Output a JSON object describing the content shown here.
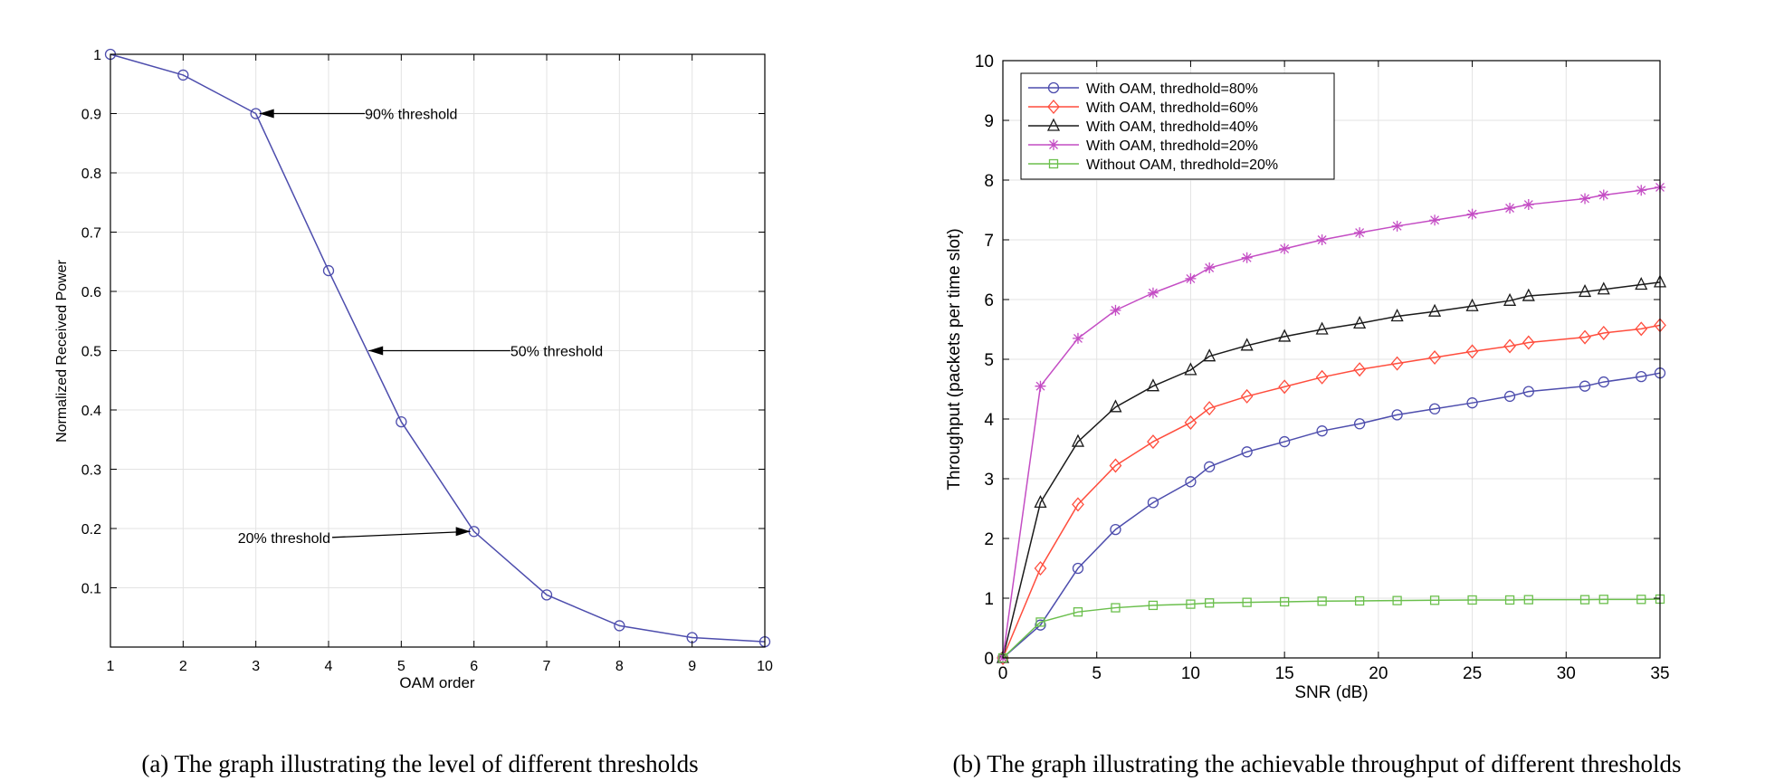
{
  "chart_data": [
    {
      "type": "line",
      "title": "",
      "xlabel": "OAM order",
      "ylabel": "Normalized Received Power",
      "xlim": [
        1,
        10
      ],
      "ylim": [
        0,
        1
      ],
      "grid": true,
      "xticks": [
        1,
        2,
        3,
        4,
        5,
        6,
        7,
        8,
        9,
        10
      ],
      "yticks": [
        0.1,
        0.2,
        0.3,
        0.4,
        0.5,
        0.6,
        0.7,
        0.8,
        0.9,
        1
      ],
      "x_tick_labels": [
        "1",
        "2",
        "3",
        "4",
        "5",
        "6",
        "7",
        "8",
        "9",
        "10"
      ],
      "y_tick_labels": [
        "0.1",
        "0.2",
        "0.3",
        "0.4",
        "0.5",
        "0.6",
        "0.7",
        "0.8",
        "0.9",
        "1"
      ],
      "series": [
        {
          "name": "Normalized received power",
          "color": "#4d4dad",
          "marker": "circle",
          "x": [
            1,
            2,
            3,
            4,
            5,
            6,
            7,
            8,
            9,
            10
          ],
          "values": [
            1.0,
            0.965,
            0.9,
            0.635,
            0.38,
            0.195,
            0.088,
            0.036,
            0.016,
            0.009
          ]
        }
      ],
      "annotations": [
        {
          "text": "90% threshold",
          "point": [
            3.05,
            0.9
          ],
          "text_at": [
            4.5,
            0.9
          ],
          "align": "left"
        },
        {
          "text": "50% threshold",
          "point": [
            4.55,
            0.5
          ],
          "text_at": [
            6.5,
            0.5
          ],
          "align": "left"
        },
        {
          "text": "20% threshold",
          "point": [
            5.95,
            0.195
          ],
          "text_at": [
            4.05,
            0.185
          ],
          "align": "right"
        }
      ],
      "caption": "(a) The graph illustrating the level of different thresholds"
    },
    {
      "type": "line",
      "title": "",
      "xlabel": "SNR (dB)",
      "ylabel": "Throughput (packets per time slot)",
      "xlim": [
        0,
        35
      ],
      "ylim": [
        0,
        10
      ],
      "grid": true,
      "legend_position": "top-left",
      "xticks": [
        0,
        5,
        10,
        15,
        20,
        25,
        30,
        35
      ],
      "yticks": [
        0,
        1,
        2,
        3,
        4,
        5,
        6,
        7,
        8,
        9,
        10
      ],
      "x_tick_labels": [
        "0",
        "5",
        "10",
        "15",
        "20",
        "25",
        "30",
        "35"
      ],
      "y_tick_labels": [
        "0",
        "1",
        "2",
        "3",
        "4",
        "5",
        "6",
        "7",
        "8",
        "9",
        "10"
      ],
      "x": [
        0,
        2,
        4,
        6,
        8,
        10,
        11,
        13,
        15,
        17,
        19,
        21,
        23,
        25,
        27,
        28,
        31,
        32,
        34,
        35
      ],
      "series": [
        {
          "name": "With OAM, thredhold=80%",
          "color": "#4d4dad",
          "marker": "circle",
          "values": [
            0,
            0.55,
            1.5,
            2.15,
            2.6,
            2.95,
            3.2,
            3.45,
            3.62,
            3.8,
            3.92,
            4.07,
            4.17,
            4.27,
            4.38,
            4.46,
            4.55,
            4.62,
            4.71,
            4.77
          ]
        },
        {
          "name": "With OAM, thredhold=60%",
          "color": "#ff4d3d",
          "marker": "diamond",
          "values": [
            0,
            1.5,
            2.57,
            3.22,
            3.62,
            3.94,
            4.18,
            4.38,
            4.54,
            4.7,
            4.83,
            4.93,
            5.03,
            5.13,
            5.22,
            5.28,
            5.37,
            5.44,
            5.51,
            5.57
          ]
        },
        {
          "name": "With OAM, thredhold=40%",
          "color": "#1a1a1a",
          "marker": "triangle",
          "values": [
            0,
            2.6,
            3.62,
            4.2,
            4.55,
            4.82,
            5.05,
            5.23,
            5.38,
            5.5,
            5.6,
            5.72,
            5.8,
            5.89,
            5.98,
            6.06,
            6.13,
            6.17,
            6.25,
            6.29
          ]
        },
        {
          "name": "With OAM, thredhold=20%",
          "color": "#c44dc4",
          "marker": "asterisk",
          "values": [
            0,
            4.55,
            5.35,
            5.82,
            6.11,
            6.35,
            6.53,
            6.7,
            6.85,
            7.0,
            7.12,
            7.23,
            7.33,
            7.43,
            7.53,
            7.59,
            7.69,
            7.75,
            7.83,
            7.88
          ]
        },
        {
          "name": "Without OAM, thredhold=20%",
          "color": "#6bbf4d",
          "marker": "square",
          "values": [
            0,
            0.6,
            0.77,
            0.84,
            0.88,
            0.9,
            0.92,
            0.93,
            0.94,
            0.95,
            0.955,
            0.96,
            0.965,
            0.97,
            0.97,
            0.975,
            0.975,
            0.98,
            0.98,
            0.985
          ]
        }
      ],
      "caption": "(b) The graph illustrating the achievable throughput of different thresholds"
    }
  ]
}
